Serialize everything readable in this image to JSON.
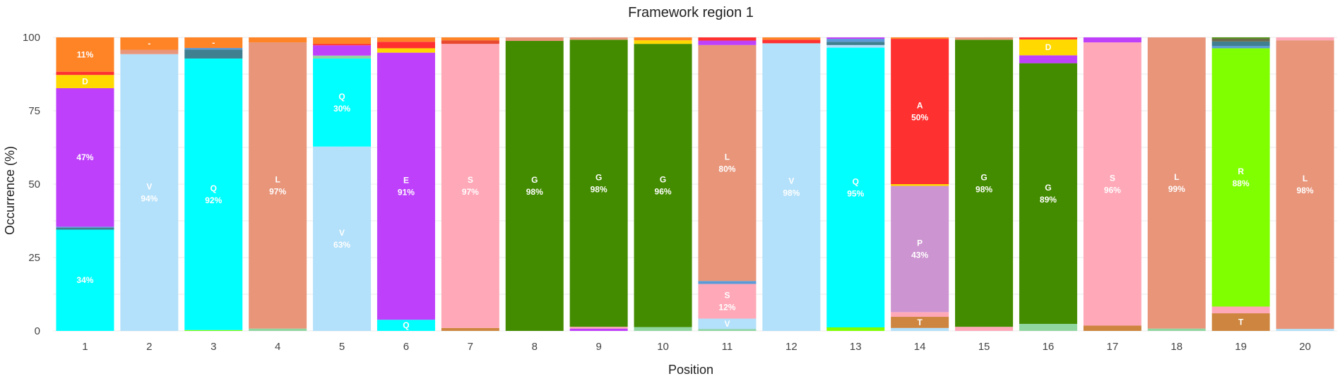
{
  "chart_data": {
    "type": "bar",
    "stacked": true,
    "title": "Framework region 1",
    "xlabel": "Position",
    "ylabel": "Occurrence (%)",
    "ylim": [
      0,
      100
    ],
    "yticks": [
      0,
      25,
      50,
      75,
      100
    ],
    "grid": true,
    "legend": "none",
    "categories": [
      "1",
      "2",
      "3",
      "4",
      "5",
      "6",
      "7",
      "8",
      "9",
      "10",
      "11",
      "12",
      "13",
      "14",
      "15",
      "16",
      "17",
      "18",
      "19",
      "20"
    ],
    "colors": {
      "Q": "#00ffff",
      "V": "#b3e0fa",
      "E": "#bf40fb",
      "D": "#ffd900",
      "-": "#ff8426",
      "L": "#e8957a",
      "S": "#ffa8b8",
      "G": "#438c00",
      "A": "#ff3030",
      "P": "#cc94d0",
      "T": "#cd853f",
      "R": "#80ff00",
      "K": "#e8482e",
      "F": "#3f7f8f",
      "I": "#8fd6a0",
      "M": "#5a9ad6",
      "Y": "#6b6b4a",
      "C": "#ffb000"
    },
    "bars": [
      [
        [
          "Q",
          34.5,
          "34%"
        ],
        [
          "F",
          0.6,
          null
        ],
        [
          "M",
          0.4,
          null
        ],
        [
          "E",
          47.2,
          "47%"
        ],
        [
          "D",
          4.5,
          "D"
        ],
        [
          "A",
          1.1,
          null
        ],
        [
          "-",
          11.7,
          "11%"
        ]
      ],
      [
        [
          "V",
          94.3,
          "V\n94%"
        ],
        [
          "L",
          1.5,
          null
        ],
        [
          "-",
          4.2,
          "-"
        ]
      ],
      [
        [
          "R",
          0.3,
          null
        ],
        [
          "Q",
          92.5,
          "Q\n92%"
        ],
        [
          "F",
          3.0,
          null
        ],
        [
          "M",
          0.6,
          null
        ],
        [
          "-",
          3.6,
          "-"
        ]
      ],
      [
        [
          "I",
          0.8,
          null
        ],
        [
          "L",
          97.5,
          "L\n97%"
        ],
        [
          "-",
          1.7,
          null
        ]
      ],
      [
        [
          "V",
          62.8,
          "V\n63%"
        ],
        [
          "Q",
          30.0,
          "Q\n30%"
        ],
        [
          "I",
          1.0,
          null
        ],
        [
          "E",
          3.5,
          null
        ],
        [
          "A",
          0.5,
          null
        ],
        [
          "-",
          2.2,
          null
        ]
      ],
      [
        [
          "Q",
          3.8,
          "Q"
        ],
        [
          "E",
          91.0,
          "E\n91%"
        ],
        [
          "D",
          1.5,
          null
        ],
        [
          "A",
          2.2,
          null
        ],
        [
          "-",
          1.5,
          null
        ]
      ],
      [
        [
          "T",
          1.0,
          null
        ],
        [
          "S",
          96.8,
          "S\n97%"
        ],
        [
          "K",
          1.2,
          null
        ],
        [
          "-",
          1.0,
          null
        ]
      ],
      [
        [
          "G",
          98.8,
          "G\n98%"
        ],
        [
          "L",
          1.2,
          null
        ]
      ],
      [
        [
          "E",
          0.8,
          null
        ],
        [
          "S",
          0.6,
          null
        ],
        [
          "G",
          97.8,
          "G\n98%"
        ],
        [
          "L",
          0.8,
          null
        ]
      ],
      [
        [
          "I",
          1.3,
          null
        ],
        [
          "G",
          96.5,
          "G\n96%"
        ],
        [
          "D",
          1.2,
          null
        ],
        [
          "-",
          1.0,
          null
        ]
      ],
      [
        [
          "I",
          0.6,
          null
        ],
        [
          "V",
          3.6,
          "V"
        ],
        [
          "S",
          11.8,
          "S\n12%"
        ],
        [
          "M",
          1.0,
          null
        ],
        [
          "L",
          80.4,
          "L\n80%"
        ],
        [
          "E",
          1.5,
          null
        ],
        [
          "A",
          1.1,
          null
        ]
      ],
      [
        [
          "V",
          98.0,
          "V\n98%"
        ],
        [
          "A",
          1.2,
          null
        ],
        [
          "-",
          0.8,
          null
        ]
      ],
      [
        [
          "R",
          1.2,
          null
        ],
        [
          "Q",
          95.3,
          "Q\n95%"
        ],
        [
          "V",
          0.9,
          null
        ],
        [
          "F",
          1.1,
          null
        ],
        [
          "M",
          1.0,
          null
        ],
        [
          "E",
          0.5,
          null
        ]
      ],
      [
        [
          "V",
          1.0,
          null
        ],
        [
          "T",
          3.8,
          "T"
        ],
        [
          "S",
          1.6,
          null
        ],
        [
          "P",
          43.0,
          "P\n43%"
        ],
        [
          "D",
          0.6,
          null
        ],
        [
          "A",
          49.5,
          "A\n50%"
        ],
        [
          "-",
          0.5,
          null
        ]
      ],
      [
        [
          "S",
          1.4,
          null
        ],
        [
          "G",
          97.8,
          "G\n98%"
        ],
        [
          "L",
          0.8,
          null
        ]
      ],
      [
        [
          "I",
          2.4,
          null
        ],
        [
          "G",
          88.8,
          "G\n89%"
        ],
        [
          "E",
          2.7,
          null
        ],
        [
          "D",
          5.4,
          "D"
        ],
        [
          "A",
          0.7,
          null
        ]
      ],
      [
        [
          "T",
          1.8,
          null
        ],
        [
          "S",
          96.5,
          "S\n96%"
        ],
        [
          "E",
          1.7,
          null
        ]
      ],
      [
        [
          "I",
          0.8,
          null
        ],
        [
          "L",
          99.2,
          "L\n99%"
        ]
      ],
      [
        [
          "T",
          6.0,
          "T"
        ],
        [
          "S",
          2.3,
          null
        ],
        [
          "R",
          88.0,
          "R\n88%"
        ],
        [
          "M",
          0.8,
          null
        ],
        [
          "F",
          1.5,
          null
        ],
        [
          "Y",
          1.0,
          null
        ],
        [
          "G",
          0.4,
          null
        ]
      ],
      [
        [
          "V",
          0.7,
          null
        ],
        [
          "L",
          98.3,
          "L\n98%"
        ],
        [
          "S",
          1.0,
          null
        ]
      ]
    ]
  }
}
